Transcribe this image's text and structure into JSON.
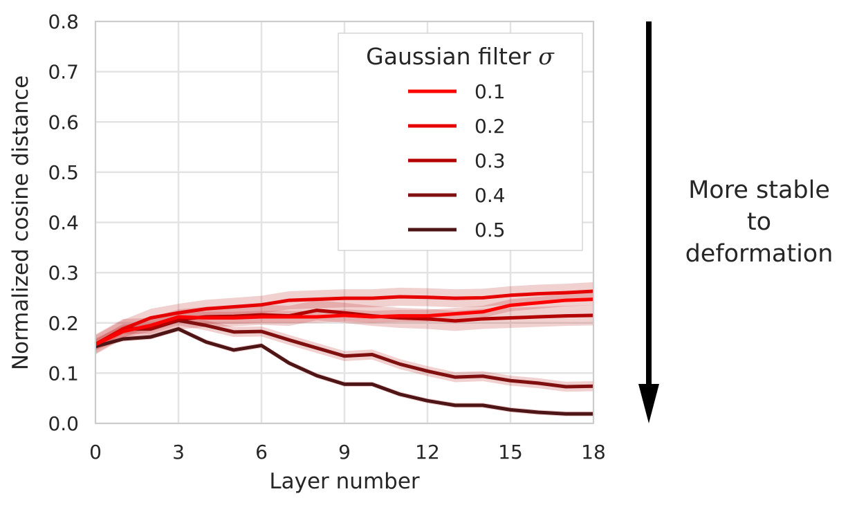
{
  "chart_data": {
    "type": "line",
    "xlabel": "Layer number",
    "ylabel": "Normalized cosine distance",
    "xlim": [
      0,
      18
    ],
    "ylim": [
      0,
      0.8
    ],
    "xticks": [
      0,
      3,
      6,
      9,
      12,
      15,
      18
    ],
    "xtick_labels": [
      "0",
      "3",
      "6",
      "9",
      "12",
      "15",
      "18"
    ],
    "yticks": [
      0.0,
      0.1,
      0.2,
      0.3,
      0.4,
      0.5,
      0.6,
      0.7,
      0.8
    ],
    "ytick_labels": [
      "0.0",
      "0.1",
      "0.2",
      "0.3",
      "0.4",
      "0.5",
      "0.6",
      "0.7",
      "0.8"
    ],
    "grid": true,
    "legend": {
      "title_text": "Gaussian filter ",
      "title_symbol": "σ",
      "position": "top-right"
    },
    "x": [
      0,
      1,
      2,
      3,
      4,
      5,
      6,
      7,
      8,
      9,
      10,
      11,
      12,
      13,
      14,
      15,
      16,
      17,
      18
    ],
    "series": [
      {
        "name": "0.1",
        "color": "#ff0000",
        "values": [
          0.157,
          0.183,
          0.195,
          0.212,
          0.21,
          0.21,
          0.212,
          0.212,
          0.212,
          0.215,
          0.212,
          0.214,
          0.214,
          0.218,
          0.222,
          0.235,
          0.24,
          0.245,
          0.247
        ],
        "band": 0.012
      },
      {
        "name": "0.2",
        "color": "#e60000",
        "values": [
          0.157,
          0.188,
          0.21,
          0.22,
          0.228,
          0.232,
          0.236,
          0.245,
          0.247,
          0.249,
          0.249,
          0.252,
          0.251,
          0.249,
          0.25,
          0.255,
          0.258,
          0.26,
          0.263
        ],
        "band": 0.018
      },
      {
        "name": "0.3",
        "color": "#b30000",
        "values": [
          0.157,
          0.188,
          0.19,
          0.207,
          0.212,
          0.213,
          0.216,
          0.214,
          0.225,
          0.22,
          0.214,
          0.21,
          0.208,
          0.204,
          0.208,
          0.21,
          0.212,
          0.214,
          0.215
        ],
        "band": 0.02
      },
      {
        "name": "0.4",
        "color": "#801010",
        "values": [
          0.157,
          0.188,
          0.188,
          0.205,
          0.195,
          0.182,
          0.183,
          0.166,
          0.15,
          0.134,
          0.137,
          0.118,
          0.104,
          0.092,
          0.094,
          0.085,
          0.08,
          0.073,
          0.074
        ],
        "band": 0.01
      },
      {
        "name": "0.5",
        "color": "#4d1515",
        "values": [
          0.153,
          0.168,
          0.172,
          0.188,
          0.162,
          0.146,
          0.155,
          0.12,
          0.095,
          0.078,
          0.078,
          0.058,
          0.045,
          0.036,
          0.036,
          0.027,
          0.022,
          0.019,
          0.019
        ],
        "band": 0.005
      }
    ]
  },
  "annotation": {
    "line1": "More stable",
    "line2": "to",
    "line3": "deformation"
  }
}
